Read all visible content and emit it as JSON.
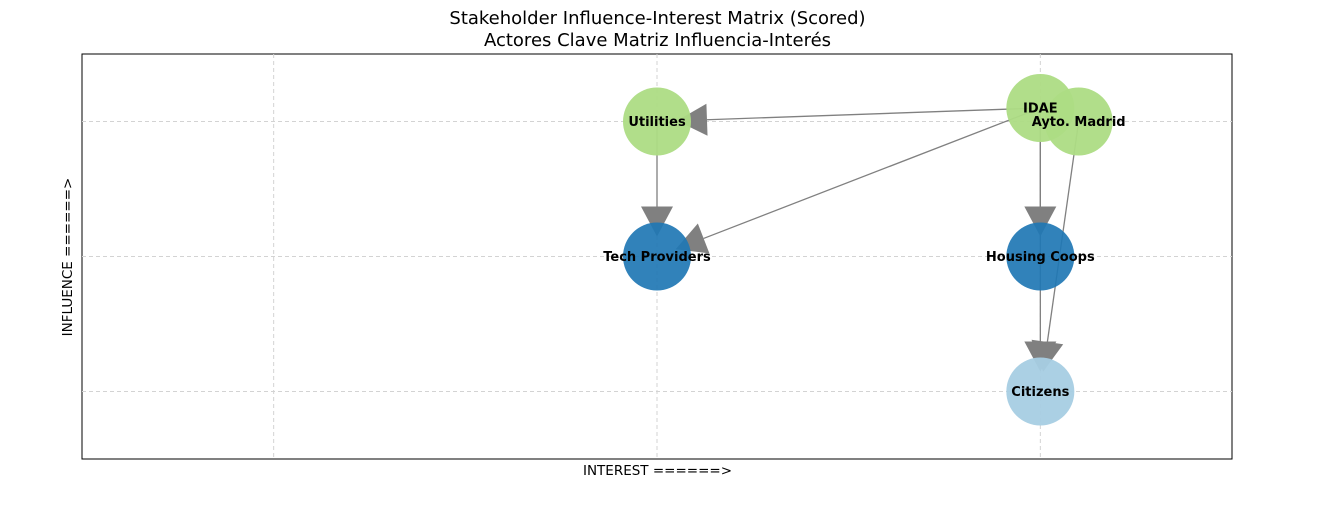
{
  "chart_data": {
    "type": "scatter",
    "title": "Stakeholder Influence-Interest Matrix (Scored)",
    "subtitle": "Actores Clave Matriz Influencia-Interés",
    "xlabel": "INTEREST ======>",
    "ylabel": "INFLUENCE ======>",
    "xlim": [
      0,
      3
    ],
    "ylim": [
      0,
      3
    ],
    "grid": true,
    "colors": {
      "high": "#addc84",
      "medium": "#1f77b4",
      "low": "#a6cee3",
      "edge": "#808080",
      "grid": "#d3d3d3"
    },
    "nodes": [
      {
        "name": "Utilities",
        "x": 1.5,
        "y": 2.5,
        "group": "high"
      },
      {
        "name": "IDAE",
        "x": 2.5,
        "y": 2.6,
        "group": "high"
      },
      {
        "name": "Ayto. Madrid",
        "x": 2.6,
        "y": 2.5,
        "group": "high"
      },
      {
        "name": "Tech Providers",
        "x": 1.5,
        "y": 1.5,
        "group": "medium"
      },
      {
        "name": "Housing Coops",
        "x": 2.5,
        "y": 1.5,
        "group": "medium"
      },
      {
        "name": "Citizens",
        "x": 2.5,
        "y": 0.5,
        "group": "low"
      }
    ],
    "edges": [
      {
        "from": "IDAE",
        "to": "Utilities"
      },
      {
        "from": "IDAE",
        "to": "Tech Providers"
      },
      {
        "from": "IDAE",
        "to": "Housing Coops"
      },
      {
        "from": "IDAE",
        "to": "Citizens"
      },
      {
        "from": "Ayto. Madrid",
        "to": "Citizens"
      },
      {
        "from": "Utilities",
        "to": "Tech Providers"
      }
    ]
  }
}
